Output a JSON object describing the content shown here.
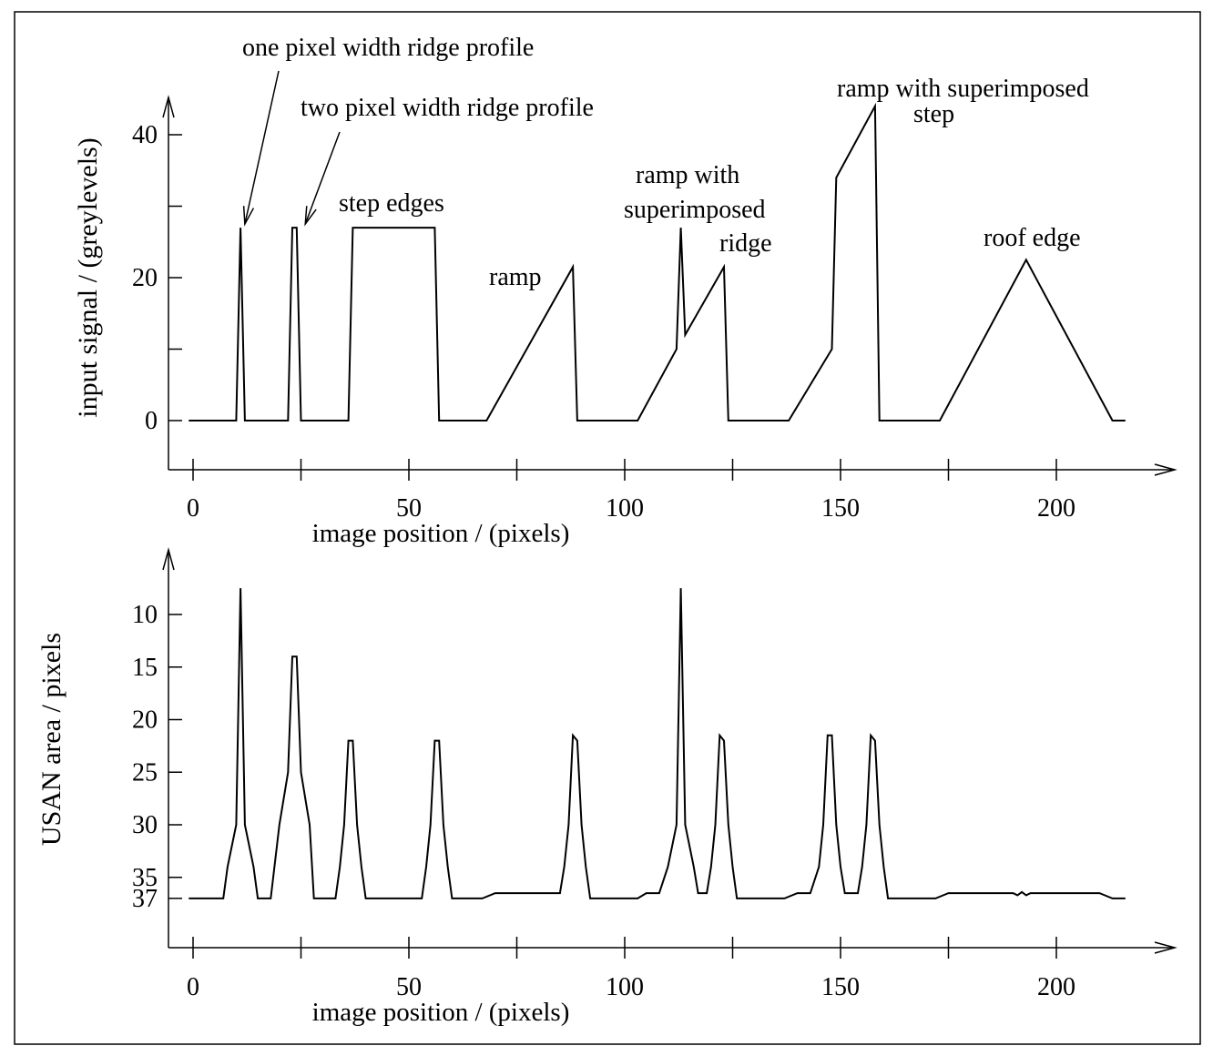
{
  "chart_data": [
    {
      "type": "line",
      "title": "",
      "xlabel": "image position / (pixels)",
      "ylabel": "input signal / (greylevels)",
      "xlim": [
        -0.5,
        218
      ],
      "ylim": [
        -7,
        44
      ],
      "xticks": [
        0,
        25,
        50,
        75,
        100,
        125,
        150,
        175,
        200
      ],
      "xtick_labels": [
        {
          "value": 0,
          "label": "0"
        },
        {
          "value": 50,
          "label": "50"
        },
        {
          "value": 100,
          "label": "100"
        },
        {
          "value": 150,
          "label": "150"
        },
        {
          "value": 200,
          "label": "200"
        }
      ],
      "yticks": [
        0,
        10,
        20,
        30,
        40
      ],
      "ytick_labels": [
        {
          "value": 0,
          "label": "0"
        },
        {
          "value": 20,
          "label": "20"
        },
        {
          "value": 40,
          "label": "40"
        }
      ],
      "annotations": [
        {
          "text": "one pixel width ridge profile",
          "arrow_to": [
            12,
            27.5
          ]
        },
        {
          "text": "two pixel width ridge profile",
          "arrow_to": [
            26,
            27.5
          ]
        },
        {
          "text": "step edges"
        },
        {
          "text": "ramp"
        },
        {
          "text": "ramp with"
        },
        {
          "text": "superimposed"
        },
        {
          "text": "ridge"
        },
        {
          "text": "ramp with superimposed"
        },
        {
          "text": "step"
        },
        {
          "text": "roof edge"
        }
      ],
      "series": [
        {
          "x": [
            -1,
            10,
            11,
            12,
            22,
            23,
            24,
            25,
            36,
            37,
            56,
            57,
            68,
            88,
            89,
            103,
            112,
            113,
            114,
            123,
            124,
            138,
            148,
            149,
            158,
            159,
            173,
            193,
            213,
            216
          ],
          "y": [
            0,
            0,
            27,
            0,
            0,
            27,
            27,
            0,
            0,
            27,
            27,
            0,
            0,
            21.5,
            0,
            0,
            10,
            27,
            12,
            21.5,
            0,
            0,
            10,
            34,
            44,
            0,
            0,
            22.5,
            0,
            0
          ]
        }
      ]
    },
    {
      "type": "line",
      "title": "",
      "xlabel": "image position / (pixels)",
      "ylabel": "USAN area / pixels",
      "xlim": [
        -0.5,
        218
      ],
      "ylim": [
        41.5,
        4
      ],
      "inverted_y": true,
      "xticks": [
        0,
        25,
        50,
        75,
        100,
        125,
        150,
        175,
        200
      ],
      "xtick_labels": [
        {
          "value": 0,
          "label": "0"
        },
        {
          "value": 50,
          "label": "50"
        },
        {
          "value": 100,
          "label": "100"
        },
        {
          "value": 150,
          "label": "150"
        },
        {
          "value": 200,
          "label": "200"
        }
      ],
      "yticks": [
        10,
        15,
        20,
        25,
        30,
        35,
        37
      ],
      "ytick_labels": [
        {
          "value": 10,
          "label": "10"
        },
        {
          "value": 15,
          "label": "15"
        },
        {
          "value": 20,
          "label": "20"
        },
        {
          "value": 25,
          "label": "25"
        },
        {
          "value": 30,
          "label": "30"
        },
        {
          "value": 35,
          "label": "35"
        },
        {
          "value": 37,
          "label": "37"
        }
      ],
      "series": [
        {
          "x": [
            -1,
            7,
            8,
            10,
            11,
            12,
            14,
            15,
            18,
            20,
            22,
            23,
            24,
            25,
            27,
            28,
            33,
            34,
            35,
            36,
            37,
            38,
            39,
            40,
            53,
            54,
            55,
            56,
            57,
            58,
            59,
            60,
            67,
            70,
            85,
            86,
            87,
            88,
            89,
            90,
            91,
            92,
            103,
            105,
            108,
            110,
            112,
            113,
            114,
            116,
            117,
            119,
            120,
            121,
            122,
            123,
            124,
            125,
            126,
            127,
            137,
            140,
            143,
            145,
            146,
            147,
            148,
            149,
            150,
            151,
            154,
            155,
            156,
            157,
            158,
            159,
            160,
            161,
            172,
            175,
            180,
            190,
            191,
            192,
            193,
            194,
            195,
            196,
            210,
            213,
            216
          ],
          "y": [
            37,
            37,
            34,
            30,
            7.5,
            30,
            34,
            37,
            37,
            30,
            25,
            14,
            14,
            25,
            30,
            37,
            37,
            34,
            30,
            22,
            22,
            30,
            34,
            37,
            37,
            34,
            30,
            22,
            22,
            30,
            34,
            37,
            37,
            36.5,
            36.5,
            34,
            30,
            21.5,
            22,
            30,
            34,
            37,
            37,
            36.5,
            36.5,
            34,
            30,
            7.5,
            30,
            34,
            36.5,
            36.5,
            34,
            30,
            21.5,
            22,
            30,
            34,
            37,
            37,
            37,
            36.5,
            36.5,
            34,
            30,
            21.5,
            21.5,
            30,
            34,
            36.5,
            36.5,
            34,
            30,
            21.5,
            22,
            30,
            34,
            37,
            37,
            36.5,
            36.5,
            36.5,
            36.7,
            36.4,
            36.7,
            36.5,
            36.5,
            36.5,
            36.5,
            37,
            37
          ]
        }
      ]
    }
  ]
}
